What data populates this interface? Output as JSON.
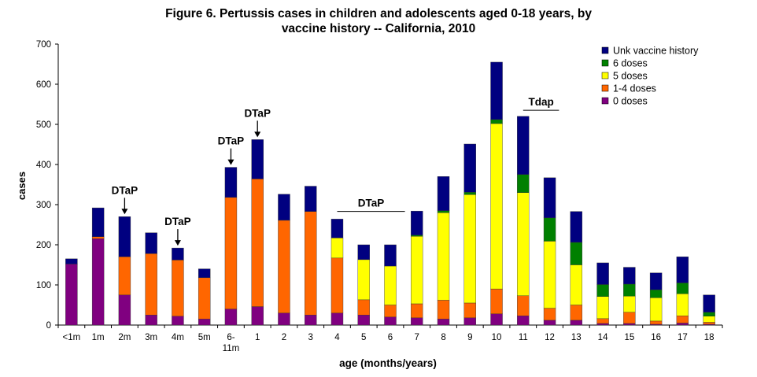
{
  "chart_data": {
    "type": "bar",
    "stacked": true,
    "title_lines": [
      "Figure 6. Pertussis cases in children and adolescents aged 0-18 years, by",
      "vaccine history -- California, 2010"
    ],
    "xlabel": "age (months/years)",
    "ylabel": "cases",
    "ylim": [
      0,
      700
    ],
    "yticks": [
      "0",
      "100",
      "200",
      "300",
      "400",
      "500",
      "600",
      "700"
    ],
    "grid": false,
    "legend_position": "top-right",
    "categories": [
      "<1m",
      "1m",
      "2m",
      "3m",
      "4m",
      "5m",
      "6-11m",
      "1",
      "2",
      "3",
      "4",
      "5",
      "6",
      "7",
      "8",
      "9",
      "10",
      "11",
      "12",
      "13",
      "14",
      "15",
      "16",
      "17",
      "18"
    ],
    "category_label_lines": [
      [
        "<1m"
      ],
      [
        "1m"
      ],
      [
        "2m"
      ],
      [
        "3m"
      ],
      [
        "4m"
      ],
      [
        "5m"
      ],
      [
        "6-",
        "11m"
      ],
      [
        "1"
      ],
      [
        "2"
      ],
      [
        "3"
      ],
      [
        "4"
      ],
      [
        "5"
      ],
      [
        "6"
      ],
      [
        "7"
      ],
      [
        "8"
      ],
      [
        "9"
      ],
      [
        "10"
      ],
      [
        "11"
      ],
      [
        "12"
      ],
      [
        "13"
      ],
      [
        "14"
      ],
      [
        "15"
      ],
      [
        "16"
      ],
      [
        "17"
      ],
      [
        "18"
      ]
    ],
    "series": [
      {
        "name": "0 doses",
        "color": "#800080",
        "values": [
          152,
          215,
          75,
          25,
          22,
          15,
          40,
          46,
          30,
          25,
          30,
          25,
          20,
          18,
          15,
          18,
          28,
          23,
          12,
          12,
          4,
          4,
          2,
          5,
          2
        ]
      },
      {
        "name": "1-4 doses",
        "color": "#ff6600",
        "values": [
          0,
          5,
          95,
          153,
          140,
          103,
          278,
          318,
          231,
          258,
          137,
          38,
          30,
          35,
          47,
          37,
          62,
          50,
          30,
          38,
          12,
          28,
          8,
          18,
          5
        ]
      },
      {
        "name": "5 doses",
        "color": "#ffff00",
        "values": [
          0,
          0,
          0,
          0,
          0,
          0,
          0,
          0,
          0,
          0,
          50,
          100,
          97,
          168,
          218,
          270,
          412,
          257,
          167,
          100,
          55,
          40,
          58,
          55,
          15
        ]
      },
      {
        "name": "6 doses",
        "color": "#008000",
        "values": [
          0,
          0,
          0,
          0,
          0,
          0,
          0,
          0,
          0,
          0,
          0,
          0,
          0,
          3,
          5,
          6,
          10,
          45,
          58,
          56,
          30,
          30,
          20,
          27,
          10
        ]
      },
      {
        "name": "Unk vaccine history",
        "color": "#000080",
        "values": [
          13,
          72,
          100,
          52,
          30,
          22,
          75,
          98,
          65,
          63,
          47,
          37,
          53,
          60,
          85,
          120,
          143,
          145,
          100,
          77,
          54,
          42,
          42,
          65,
          43
        ]
      }
    ],
    "annotations": [
      {
        "text": "DTaP",
        "type": "arrow",
        "category": "2m"
      },
      {
        "text": "DTaP",
        "type": "arrow",
        "category": "4m"
      },
      {
        "text": "DTaP",
        "type": "arrow",
        "category": "6-11m"
      },
      {
        "text": "DTaP",
        "type": "arrow",
        "category": "1"
      },
      {
        "text": "DTaP",
        "type": "bracket",
        "from": "4",
        "to": "6"
      },
      {
        "text": "Tdap",
        "type": "bracket",
        "from": "11",
        "to": "12"
      }
    ]
  }
}
